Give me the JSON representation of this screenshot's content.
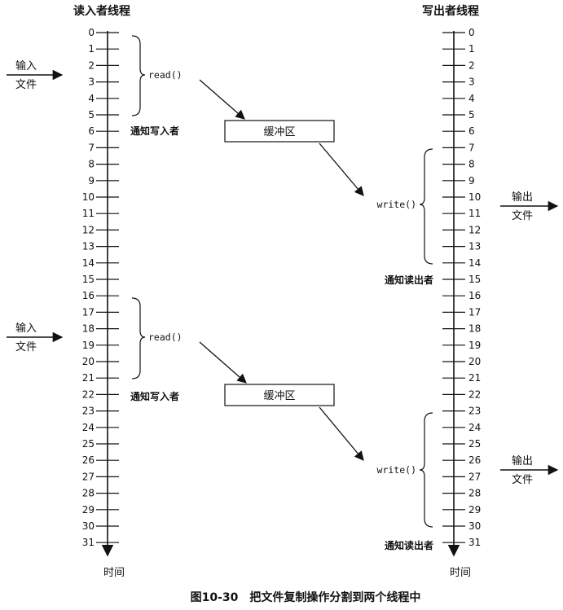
{
  "reader": {
    "title": "读入者线程",
    "time_label": "时间",
    "ticks": [
      "0",
      "1",
      "2",
      "3",
      "4",
      "5",
      "6",
      "7",
      "8",
      "9",
      "10",
      "11",
      "12",
      "13",
      "14",
      "15",
      "16",
      "17",
      "18",
      "19",
      "20",
      "21",
      "22",
      "23",
      "24",
      "25",
      "26",
      "27",
      "28",
      "29",
      "30",
      "31"
    ],
    "events": [
      {
        "call": "read()",
        "from": 0,
        "to": 5,
        "notify_tick": 6,
        "notify": "通知写入者",
        "input_top": "输入",
        "input_bottom": "文件"
      },
      {
        "call": "read()",
        "from": 16,
        "to": 21,
        "notify_tick": 22,
        "notify": "通知写入者",
        "input_top": "输入",
        "input_bottom": "文件"
      }
    ]
  },
  "writer": {
    "title": "写出者线程",
    "time_label": "时间",
    "ticks": [
      "0",
      "1",
      "2",
      "3",
      "4",
      "5",
      "6",
      "7",
      "8",
      "9",
      "10",
      "11",
      "12",
      "13",
      "14",
      "15",
      "16",
      "17",
      "18",
      "19",
      "20",
      "21",
      "22",
      "23",
      "24",
      "25",
      "26",
      "27",
      "28",
      "29",
      "30",
      "31"
    ],
    "events": [
      {
        "call": "write()",
        "from": 7,
        "to": 14,
        "notify_tick": 15,
        "notify": "通知读出者",
        "output_top": "输出",
        "output_bottom": "文件"
      },
      {
        "call": "write()",
        "from": 23,
        "to": 30,
        "notify_tick": 31,
        "notify": "通知读出者",
        "output_top": "输出",
        "output_bottom": "文件"
      }
    ]
  },
  "buffers": [
    {
      "label": "缓冲区"
    },
    {
      "label": "缓冲区"
    }
  ],
  "caption": "图10-30　把文件复制操作分割到两个线程中"
}
